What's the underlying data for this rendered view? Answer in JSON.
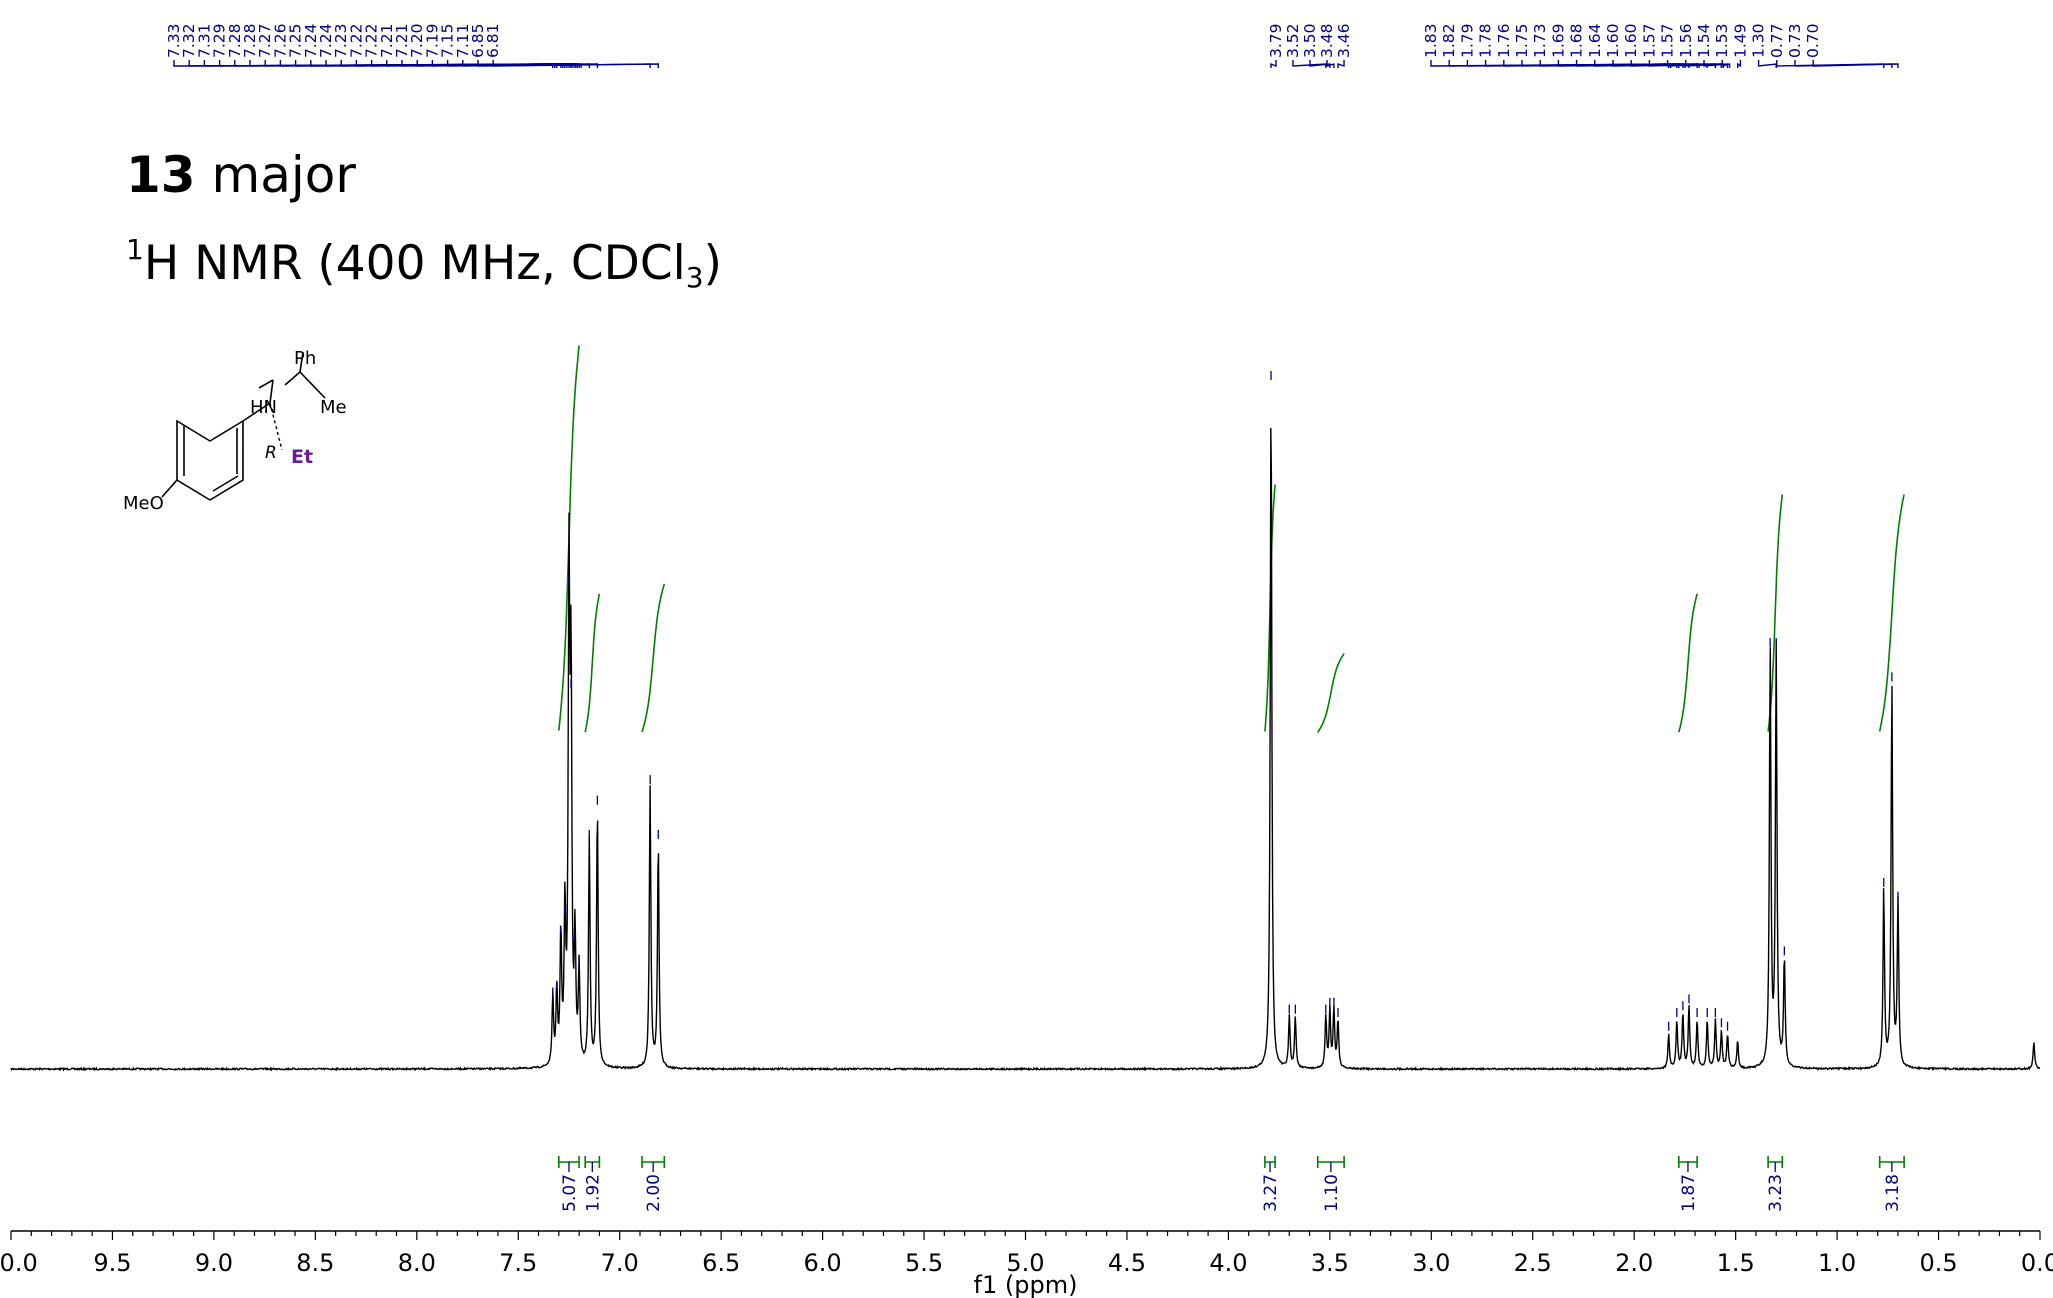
{
  "header": {
    "compound_number": "13",
    "compound_qualifier": "major",
    "nucleus_mass": "1",
    "nucleus_symbol": "H",
    "method_text": "NMR (400 MHz, CDCl",
    "solvent_subscript": "3",
    "method_close": ")"
  },
  "structure": {
    "labels": {
      "ph": "Ph",
      "hn": "HN",
      "me": "Me",
      "r": "R",
      "et": "Et",
      "meo": "MeO"
    },
    "colors": {
      "et": "#6a1b9a",
      "bonds": "#000000"
    }
  },
  "chart_data": {
    "type": "line",
    "title": "",
    "xlabel": "f1 (ppm)",
    "ylabel": "",
    "xlim": [
      10.0,
      0.0
    ],
    "x_reversed": true,
    "grid": false,
    "x_ticks": [
      "10.0",
      "9.5",
      "9.0",
      "8.5",
      "8.0",
      "7.5",
      "7.0",
      "6.5",
      "6.0",
      "5.5",
      "5.0",
      "4.5",
      "4.0",
      "3.5",
      "3.0",
      "2.5",
      "2.0",
      "1.5",
      "1.0",
      "0.5",
      "0.0"
    ],
    "x_tick_values": [
      10.0,
      9.5,
      9.0,
      8.5,
      8.0,
      7.5,
      7.0,
      6.5,
      6.0,
      5.5,
      5.0,
      4.5,
      4.0,
      3.5,
      3.0,
      2.5,
      2.0,
      1.5,
      1.0,
      0.5,
      0.0
    ],
    "peak_labels": [
      "7.33",
      "7.32",
      "7.31",
      "7.29",
      "7.28",
      "7.28",
      "7.27",
      "7.26",
      "7.25",
      "7.24",
      "7.24",
      "7.23",
      "7.22",
      "7.22",
      "7.21",
      "7.21",
      "7.20",
      "7.19",
      "7.15",
      "7.11",
      "6.85",
      "6.81",
      "3.79",
      "3.52",
      "3.50",
      "3.48",
      "3.46",
      "1.83",
      "1.82",
      "1.79",
      "1.78",
      "1.76",
      "1.75",
      "1.73",
      "1.69",
      "1.68",
      "1.64",
      "1.60",
      "1.60",
      "1.57",
      "1.57",
      "1.56",
      "1.54",
      "1.53",
      "1.49",
      "1.30",
      "0.77",
      "0.73",
      "0.70"
    ],
    "peaks": [
      {
        "ppm": 7.33,
        "height": 0.1
      },
      {
        "ppm": 7.31,
        "height": 0.11
      },
      {
        "ppm": 7.29,
        "height": 0.19
      },
      {
        "ppm": 7.27,
        "height": 0.22
      },
      {
        "ppm": 7.25,
        "height": 0.7
      },
      {
        "ppm": 7.24,
        "height": 0.55
      },
      {
        "ppm": 7.22,
        "height": 0.18
      },
      {
        "ppm": 7.2,
        "height": 0.14
      },
      {
        "ppm": 7.15,
        "height": 0.33
      },
      {
        "ppm": 7.11,
        "height": 0.38
      },
      {
        "ppm": 6.85,
        "height": 0.41
      },
      {
        "ppm": 6.81,
        "height": 0.33
      },
      {
        "ppm": 3.79,
        "height": 1.0
      },
      {
        "ppm": 3.7,
        "height": 0.075
      },
      {
        "ppm": 3.67,
        "height": 0.075
      },
      {
        "ppm": 3.52,
        "height": 0.075
      },
      {
        "ppm": 3.5,
        "height": 0.085
      },
      {
        "ppm": 3.48,
        "height": 0.085
      },
      {
        "ppm": 3.46,
        "height": 0.07
      },
      {
        "ppm": 1.83,
        "height": 0.05
      },
      {
        "ppm": 1.79,
        "height": 0.07
      },
      {
        "ppm": 1.76,
        "height": 0.08
      },
      {
        "ppm": 1.73,
        "height": 0.09
      },
      {
        "ppm": 1.69,
        "height": 0.07
      },
      {
        "ppm": 1.64,
        "height": 0.07
      },
      {
        "ppm": 1.6,
        "height": 0.07
      },
      {
        "ppm": 1.57,
        "height": 0.055
      },
      {
        "ppm": 1.54,
        "height": 0.05
      },
      {
        "ppm": 1.49,
        "height": 0.04
      },
      {
        "ppm": 1.33,
        "height": 0.61
      },
      {
        "ppm": 1.3,
        "height": 0.61
      },
      {
        "ppm": 1.26,
        "height": 0.16
      },
      {
        "ppm": 0.77,
        "height": 0.26
      },
      {
        "ppm": 0.73,
        "height": 0.56
      },
      {
        "ppm": 0.7,
        "height": 0.24
      },
      {
        "ppm": 0.03,
        "height": 0.04
      }
    ],
    "integrals": [
      {
        "from": 7.3,
        "to": 7.2,
        "value": "5.07",
        "rise": 0.39
      },
      {
        "from": 7.17,
        "to": 7.1,
        "value": "1.92",
        "rise": 0.14
      },
      {
        "from": 6.89,
        "to": 6.78,
        "value": "2.00",
        "rise": 0.15
      },
      {
        "from": 3.82,
        "to": 3.77,
        "value": "3.27",
        "rise": 0.25
      },
      {
        "from": 3.56,
        "to": 3.43,
        "value": "1.10",
        "rise": 0.08
      },
      {
        "from": 1.78,
        "to": 1.69,
        "value": "1.87",
        "rise": 0.14
      },
      {
        "from": 1.34,
        "to": 1.27,
        "value": "3.23",
        "rise": 0.24
      },
      {
        "from": 0.79,
        "to": 0.67,
        "value": "3.18",
        "rise": 0.24
      }
    ],
    "colors": {
      "spectrum": "#000000",
      "peak_labels": "#00008b",
      "integrals": "#008000"
    }
  }
}
